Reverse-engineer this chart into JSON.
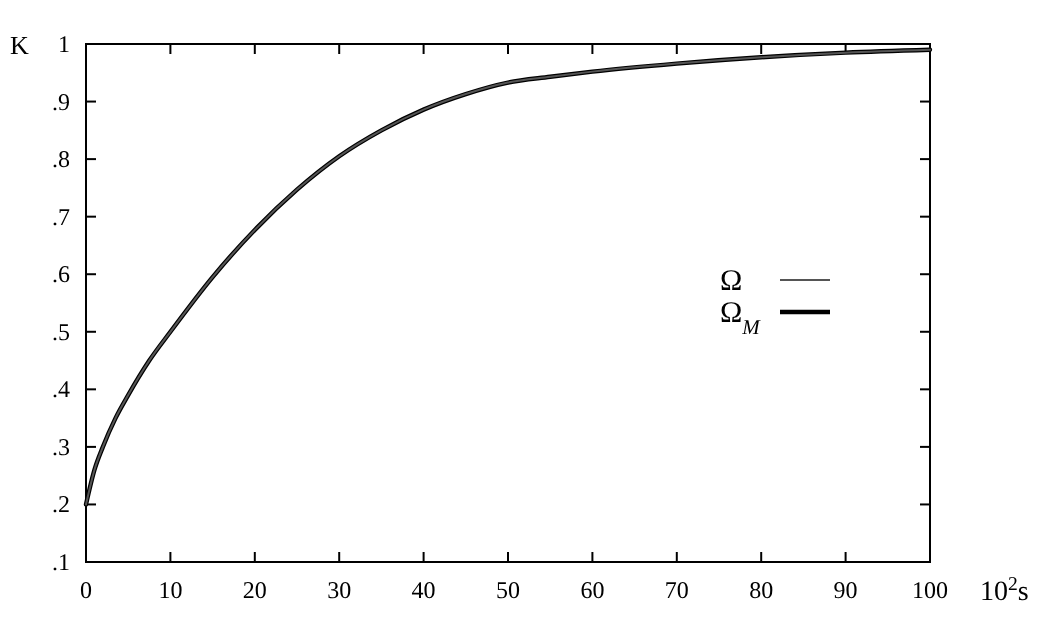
{
  "chart_data": {
    "type": "line",
    "xlabel": "10$^{2}$s",
    "ylabel": "K",
    "x": [
      0,
      1,
      2,
      3.5,
      5,
      7.5,
      10,
      15,
      20,
      25,
      30,
      35,
      40,
      45,
      50,
      55,
      60,
      70,
      80,
      90,
      100
    ],
    "series": [
      {
        "name": "Ω",
        "color": "#555555",
        "values": [
          0.2,
          0.26,
          0.3,
          0.35,
          0.39,
          0.45,
          0.5,
          0.595,
          0.677,
          0.747,
          0.805,
          0.85,
          0.886,
          0.913,
          0.933,
          0.943,
          0.952,
          0.966,
          0.977,
          0.985,
          0.99
        ]
      },
      {
        "name": "Ω$_{M}$",
        "color": "#000000",
        "values": [
          0.2,
          0.26,
          0.3,
          0.35,
          0.39,
          0.45,
          0.5,
          0.595,
          0.677,
          0.747,
          0.805,
          0.85,
          0.886,
          0.913,
          0.933,
          0.943,
          0.952,
          0.966,
          0.977,
          0.985,
          0.99
        ]
      }
    ],
    "xlim": [
      0,
      100
    ],
    "xticks": [
      0,
      10,
      20,
      30,
      40,
      50,
      60,
      70,
      80,
      90,
      100
    ],
    "ylim": [
      0.1,
      1
    ],
    "yticks": [
      {
        "value": 0.1,
        "label": ".1"
      },
      {
        "value": 0.2,
        "label": ".2"
      },
      {
        "value": 0.3,
        "label": ".3"
      },
      {
        "value": 0.4,
        "label": ".4"
      },
      {
        "value": 0.5,
        "label": ".5"
      },
      {
        "value": 0.6,
        "label": ".6"
      },
      {
        "value": 0.7,
        "label": ".7"
      },
      {
        "value": 0.8,
        "label": ".8"
      },
      {
        "value": 0.9,
        "label": ".9"
      },
      {
        "value": 1,
        "label": "1"
      }
    ],
    "grid": false,
    "legend": "right",
    "line_style": "solid"
  }
}
